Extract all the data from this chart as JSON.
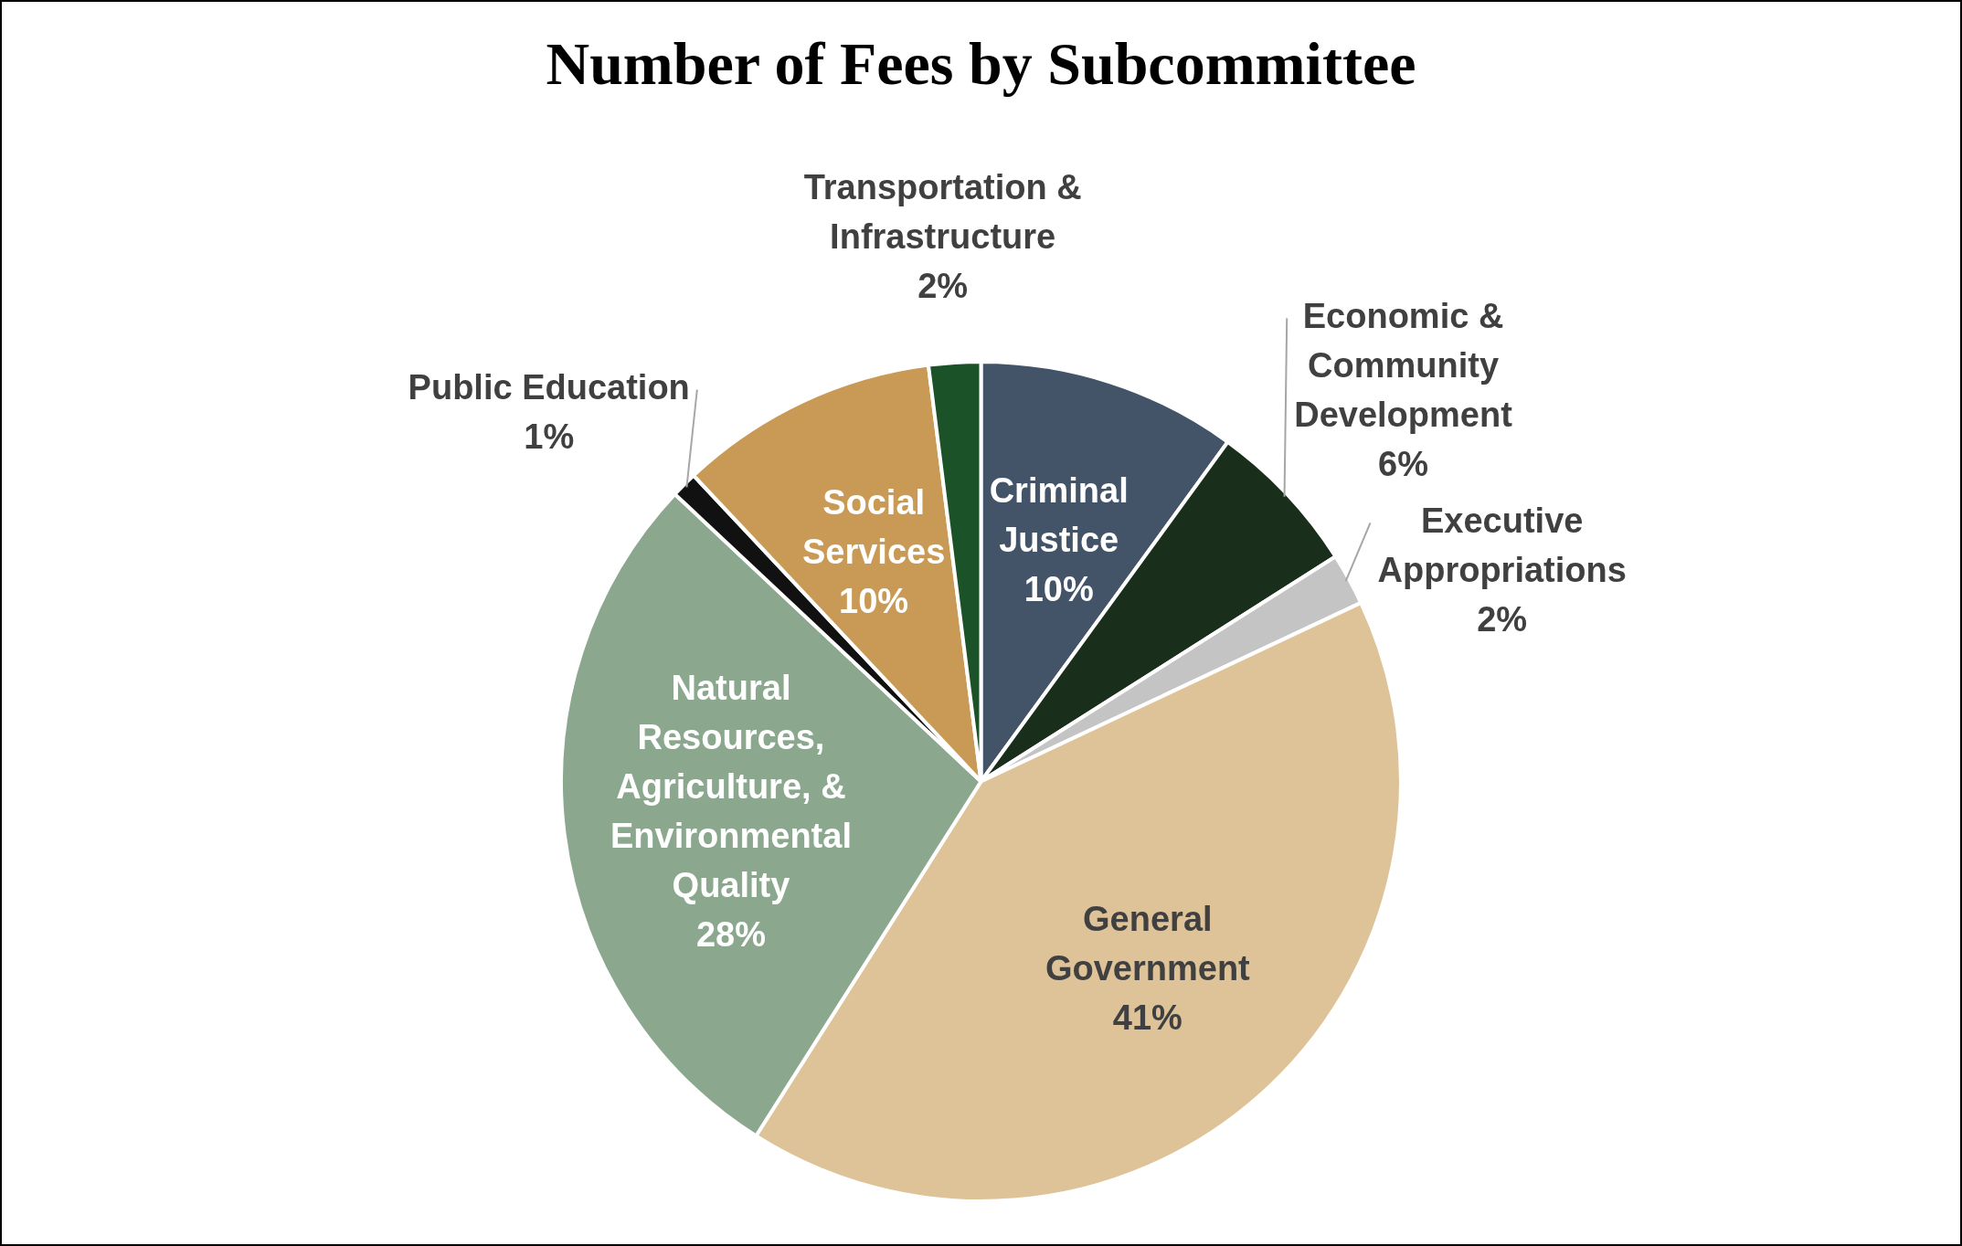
{
  "chart_data": {
    "type": "pie",
    "title": "Number of Fees by Subcommittee",
    "categories": [
      "Criminal Justice",
      "Economic & Community Development",
      "Executive Appropriations",
      "General Government",
      "Natural Resources, Agriculture, & Environmental Quality",
      "Public Education",
      "Social Services",
      "Transportation & Infrastructure"
    ],
    "values": [
      10,
      6,
      2,
      41,
      28,
      1,
      10,
      2
    ],
    "colors": [
      "#435368",
      "#1a2e1c",
      "#c4c4c4",
      "#dfc398",
      "#8ba88e",
      "#111111",
      "#c99a55",
      "#1c5228"
    ],
    "value_labels": [
      "10%",
      "6%",
      "2%",
      "41%",
      "28%",
      "1%",
      "10%",
      "2%"
    ],
    "legend": false
  }
}
